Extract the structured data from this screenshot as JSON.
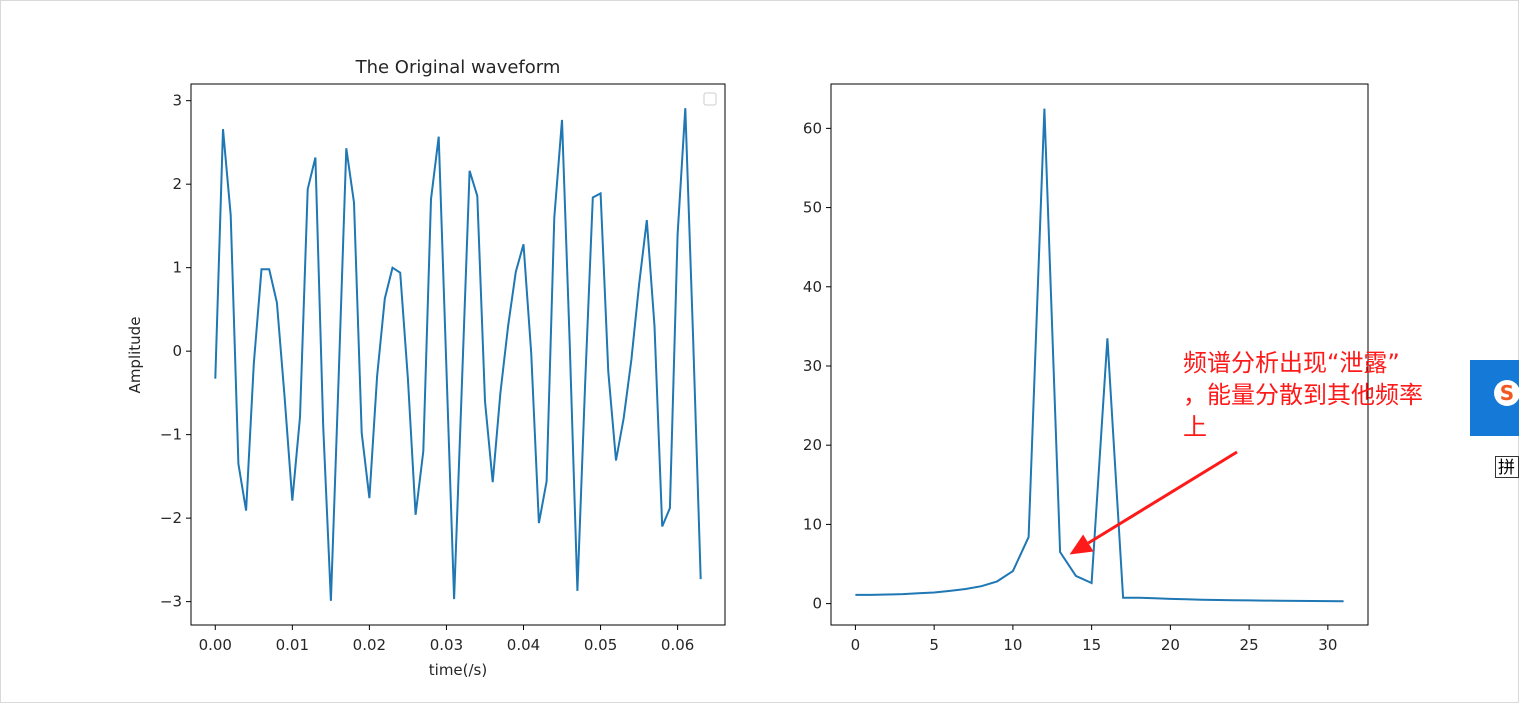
{
  "chart_data": [
    {
      "type": "line",
      "title": "The Original waveform",
      "xlabel": "time(/s)",
      "ylabel": "Amplitude",
      "xlim": [
        -0.00315,
        0.06615
      ],
      "ylim": [
        -3.28,
        3.2
      ],
      "xticks": [
        "0.00",
        "0.01",
        "0.02",
        "0.03",
        "0.04",
        "0.05",
        "0.06"
      ],
      "yticks": [
        "−3",
        "−2",
        "−1",
        "0",
        "1",
        "2",
        "3"
      ],
      "legend": "top-right (empty)",
      "grid": false,
      "color": "#1f77b4",
      "x": [
        0,
        0.001,
        0.002,
        0.003,
        0.004,
        0.005,
        0.006,
        0.007,
        0.008,
        0.009,
        0.01,
        0.011,
        0.012,
        0.013,
        0.014,
        0.015,
        0.016,
        0.017,
        0.018,
        0.019,
        0.02,
        0.021,
        0.022,
        0.023,
        0.024,
        0.025,
        0.026,
        0.027,
        0.028,
        0.029,
        0.03,
        0.031,
        0.032,
        0.033,
        0.034,
        0.035,
        0.036,
        0.037,
        0.038,
        0.039,
        0.04,
        0.041,
        0.042,
        0.043,
        0.044,
        0.045,
        0.046,
        0.047,
        0.048,
        0.049,
        0.05,
        0.051,
        0.052,
        0.053,
        0.054,
        0.055,
        0.056,
        0.057,
        0.058,
        0.059,
        0.06,
        0.061,
        0.062,
        0.063
      ],
      "y": [
        -0.33,
        2.66,
        1.63,
        -1.35,
        -1.91,
        -0.15,
        0.98,
        0.98,
        0.58,
        -0.55,
        -1.79,
        -0.79,
        1.94,
        2.32,
        -0.9,
        -2.99,
        -0.33,
        2.43,
        1.78,
        -0.98,
        -1.76,
        -0.3,
        0.63,
        1.0,
        0.94,
        -0.33,
        -1.96,
        -1.2,
        1.82,
        2.57,
        -0.2,
        -2.97,
        -0.4,
        2.16,
        1.86,
        -0.6,
        -1.57,
        -0.5,
        0.3,
        0.95,
        1.28,
        -0.02,
        -2.06,
        -1.56,
        1.6,
        2.77,
        0.1,
        -2.87,
        -0.4,
        1.84,
        1.89,
        -0.25,
        -1.31,
        -0.8,
        -0.1,
        0.8,
        1.57,
        0.3,
        -2.1,
        -1.88,
        1.4,
        2.91,
        0.2,
        -2.73
      ]
    },
    {
      "type": "line",
      "title": "",
      "xlabel": "",
      "ylabel": "",
      "xlim": [
        -1.55,
        32.55
      ],
      "ylim": [
        -2.7,
        65.6
      ],
      "xticks": [
        "0",
        "5",
        "10",
        "15",
        "20",
        "25",
        "30"
      ],
      "yticks": [
        "0",
        "10",
        "20",
        "30",
        "40",
        "50",
        "60"
      ],
      "grid": false,
      "color": "#1f77b4",
      "x": [
        0,
        1,
        2,
        3,
        4,
        5,
        6,
        7,
        8,
        9,
        10,
        11,
        12,
        13,
        14,
        15,
        16,
        17,
        18,
        19,
        20,
        21,
        22,
        23,
        24,
        25,
        26,
        27,
        28,
        29,
        30,
        31
      ],
      "y": [
        1.1,
        1.1,
        1.15,
        1.2,
        1.3,
        1.4,
        1.6,
        1.85,
        2.2,
        2.8,
        4.1,
        8.4,
        62.5,
        6.5,
        3.5,
        2.6,
        33.5,
        0.75,
        0.75,
        0.68,
        0.6,
        0.55,
        0.5,
        0.46,
        0.43,
        0.4,
        0.38,
        0.36,
        0.34,
        0.33,
        0.32,
        0.3
      ],
      "annotation": {
        "lines": [
          "频谱分析出现“泄露”",
          "，能量分散到其他频率",
          "上"
        ],
        "color": "#ff1a1a",
        "arrow_target": [
          13.6,
          6.2
        ]
      }
    }
  ],
  "ime": {
    "logo": "S",
    "pinyin": "拼"
  }
}
